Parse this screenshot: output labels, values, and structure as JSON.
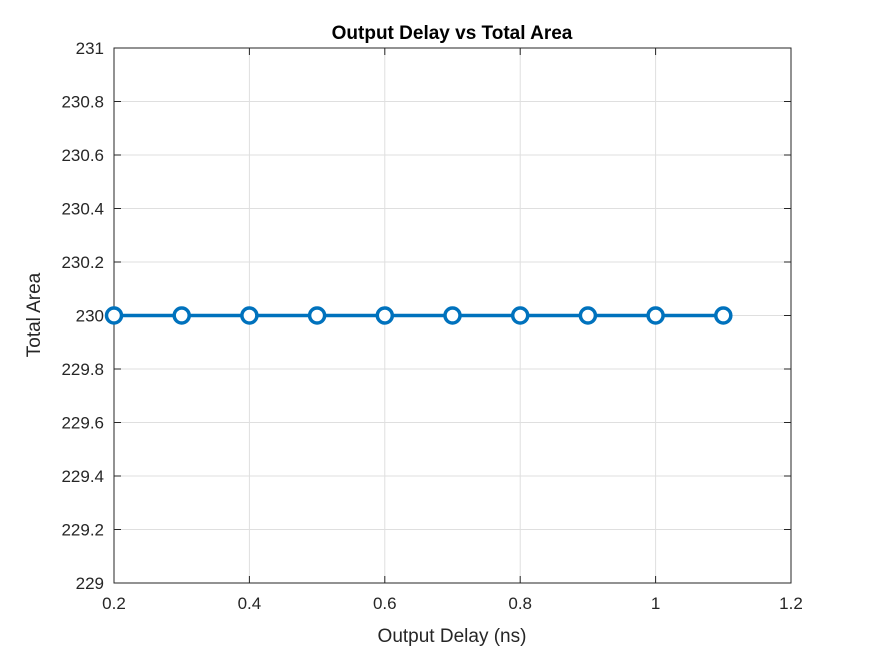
{
  "chart_data": {
    "type": "line",
    "title": "Output Delay vs Total Area",
    "xlabel": "Output Delay (ns)",
    "ylabel": "Total Area",
    "xlim": [
      0.2,
      1.2
    ],
    "ylim": [
      229,
      231
    ],
    "xticks": [
      "0.2",
      "0.4",
      "0.6",
      "0.8",
      "1",
      "1.2"
    ],
    "yticks": [
      "229",
      "229.2",
      "229.4",
      "229.6",
      "229.8",
      "230",
      "230.2",
      "230.4",
      "230.6",
      "230.8",
      "231"
    ],
    "grid": true,
    "marker": "circle",
    "series": [
      {
        "color": "#0072BD",
        "x": [
          0.2,
          0.3,
          0.4,
          0.5,
          0.6,
          0.7,
          0.8,
          0.9,
          1.0,
          1.1
        ],
        "y": [
          230,
          230,
          230,
          230,
          230,
          230,
          230,
          230,
          230,
          230
        ]
      }
    ]
  }
}
